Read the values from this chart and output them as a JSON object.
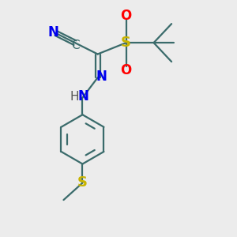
{
  "bg_color": "#ececec",
  "bond_color": "#3a6b6b",
  "bond_lw": 1.6,
  "N_color": "#0000ee",
  "O_color": "#ff0000",
  "S_color": "#c8b400",
  "C_color": "#3a6b6b",
  "H_color": "#555555",
  "font_family": "DejaVu Sans",
  "xlim": [
    0.0,
    5.5
  ],
  "ylim": [
    -3.0,
    3.2
  ],
  "figsize": [
    3.0,
    3.0
  ],
  "dpi": 100
}
